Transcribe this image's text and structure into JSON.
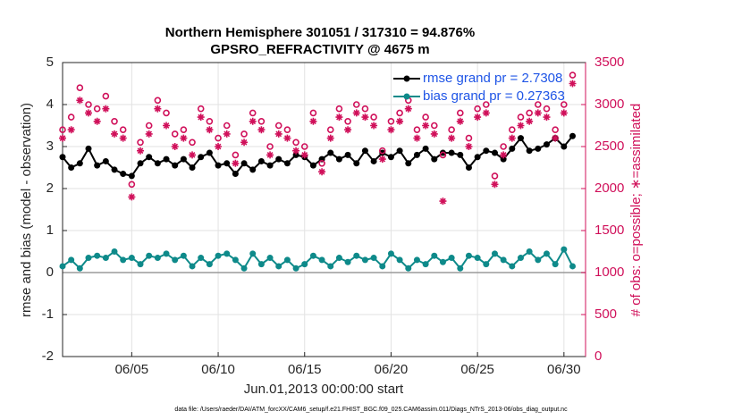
{
  "chart_data": {
    "type": "line",
    "title": "Northern Hemisphere 301051 / 317310 = 94.876%",
    "subtitle": "GPSRO_REFRACTIVITY @ 4675 m",
    "xlabel": "Jun.01,2013 00:00:00 start",
    "ylabel": "rmse and bias (model - observation)",
    "y2label": "# of obs: o=possible; ∗=assimilated",
    "footnote": "data file: /Users/raeder/DAI/ATM_forcXX/CAM6_setup/f.e21.FHIST_BGC.f09_025.CAM6assim.011/Diags_NTrS_2013-06/obs_diag_output.nc",
    "grid": true,
    "legend": "upper right",
    "x": [
      1,
      1.5,
      2,
      2.5,
      3,
      3.5,
      4,
      4.5,
      5,
      5.5,
      6,
      6.5,
      7,
      7.5,
      8,
      8.5,
      9,
      9.5,
      10,
      10.5,
      11,
      11.5,
      12,
      12.5,
      13,
      13.5,
      14,
      14.5,
      15,
      15.5,
      16,
      16.5,
      17,
      17.5,
      18,
      18.5,
      19,
      19.5,
      20,
      20.5,
      21,
      21.5,
      22,
      22.5,
      23,
      23.5,
      24,
      24.5,
      25,
      25.5,
      26,
      26.5,
      27,
      27.5,
      28,
      28.5,
      29,
      29.5,
      30,
      30.5
    ],
    "xlim": [
      1,
      31.25
    ],
    "xticks": [
      {
        "value": 5,
        "label": "06/05"
      },
      {
        "value": 10,
        "label": "06/10"
      },
      {
        "value": 15,
        "label": "06/15"
      },
      {
        "value": 20,
        "label": "06/20"
      },
      {
        "value": 25,
        "label": "06/25"
      },
      {
        "value": 30,
        "label": "06/30"
      }
    ],
    "ylim": [
      -2,
      5
    ],
    "yticks": [
      -2,
      -1,
      0,
      1,
      2,
      3,
      4,
      5
    ],
    "y2lim": [
      0,
      3500
    ],
    "y2ticks": [
      0,
      500,
      1000,
      1500,
      2000,
      2500,
      3000,
      3500
    ],
    "series": [
      {
        "name": "rmse grand pr = 2.7308",
        "color": "#000000",
        "marker": "dot",
        "axis": "y",
        "values": [
          2.75,
          2.5,
          2.6,
          2.95,
          2.55,
          2.65,
          2.45,
          2.35,
          2.3,
          2.6,
          2.75,
          2.6,
          2.7,
          2.55,
          2.7,
          2.5,
          2.75,
          2.85,
          2.55,
          2.6,
          2.35,
          2.6,
          2.45,
          2.65,
          2.55,
          2.7,
          2.6,
          2.8,
          2.75,
          2.55,
          2.7,
          2.85,
          2.7,
          2.8,
          2.6,
          2.9,
          2.65,
          2.85,
          2.75,
          2.9,
          2.6,
          2.8,
          2.95,
          2.7,
          2.85,
          2.85,
          2.8,
          2.5,
          2.75,
          2.9,
          2.85,
          2.7,
          2.95,
          3.2,
          2.9,
          2.95,
          3.05,
          3.2,
          3.0,
          3.25
        ]
      },
      {
        "name": "bias grand pr = 0.27363",
        "color": "#0e8a8a",
        "marker": "dot",
        "axis": "y",
        "values": [
          0.15,
          0.3,
          0.1,
          0.35,
          0.4,
          0.35,
          0.5,
          0.3,
          0.35,
          0.2,
          0.4,
          0.35,
          0.45,
          0.3,
          0.4,
          0.15,
          0.35,
          0.2,
          0.4,
          0.45,
          0.3,
          0.1,
          0.45,
          0.2,
          0.35,
          0.15,
          0.3,
          0.1,
          0.2,
          0.4,
          0.3,
          0.15,
          0.35,
          0.25,
          0.4,
          0.3,
          0.35,
          0.15,
          0.45,
          0.3,
          0.1,
          0.3,
          0.2,
          0.4,
          0.25,
          0.35,
          0.1,
          0.4,
          0.35,
          0.2,
          0.45,
          0.3,
          0.15,
          0.35,
          0.5,
          0.3,
          0.45,
          0.2,
          0.55,
          0.15
        ]
      },
      {
        "color": "#d0105a",
        "marker": "circle",
        "axis": "y2",
        "values": [
          2700,
          2850,
          3200,
          3000,
          2950,
          3100,
          2800,
          2700,
          2050,
          2550,
          2750,
          3050,
          2900,
          2650,
          2700,
          2550,
          2950,
          2800,
          2600,
          2750,
          2400,
          2650,
          2900,
          2800,
          2500,
          2750,
          2700,
          2550,
          2500,
          2900,
          2300,
          2700,
          2950,
          2800,
          3000,
          2950,
          2850,
          2450,
          2800,
          2900,
          3050,
          2700,
          2850,
          2750,
          2400,
          2700,
          2900,
          2600,
          2950,
          3000,
          2150,
          2500,
          2700,
          2850,
          2900,
          3000,
          2950,
          2700,
          3000,
          3350
        ]
      },
      {
        "color": "#d0105a",
        "marker": "star",
        "axis": "y2",
        "values": [
          2600,
          2700,
          3050,
          2900,
          2800,
          2950,
          2650,
          2600,
          1900,
          2450,
          2650,
          2950,
          2750,
          2500,
          2600,
          2400,
          2850,
          2700,
          2500,
          2650,
          2300,
          2550,
          2800,
          2700,
          2400,
          2650,
          2600,
          2450,
          2400,
          2800,
          2200,
          2600,
          2850,
          2700,
          2900,
          2850,
          2750,
          2350,
          2700,
          2800,
          2950,
          2600,
          2750,
          2650,
          1850,
          2600,
          2800,
          2500,
          2850,
          2900,
          2050,
          2400,
          2600,
          2750,
          2800,
          2900,
          2850,
          2600,
          2900,
          3250
        ]
      }
    ]
  }
}
